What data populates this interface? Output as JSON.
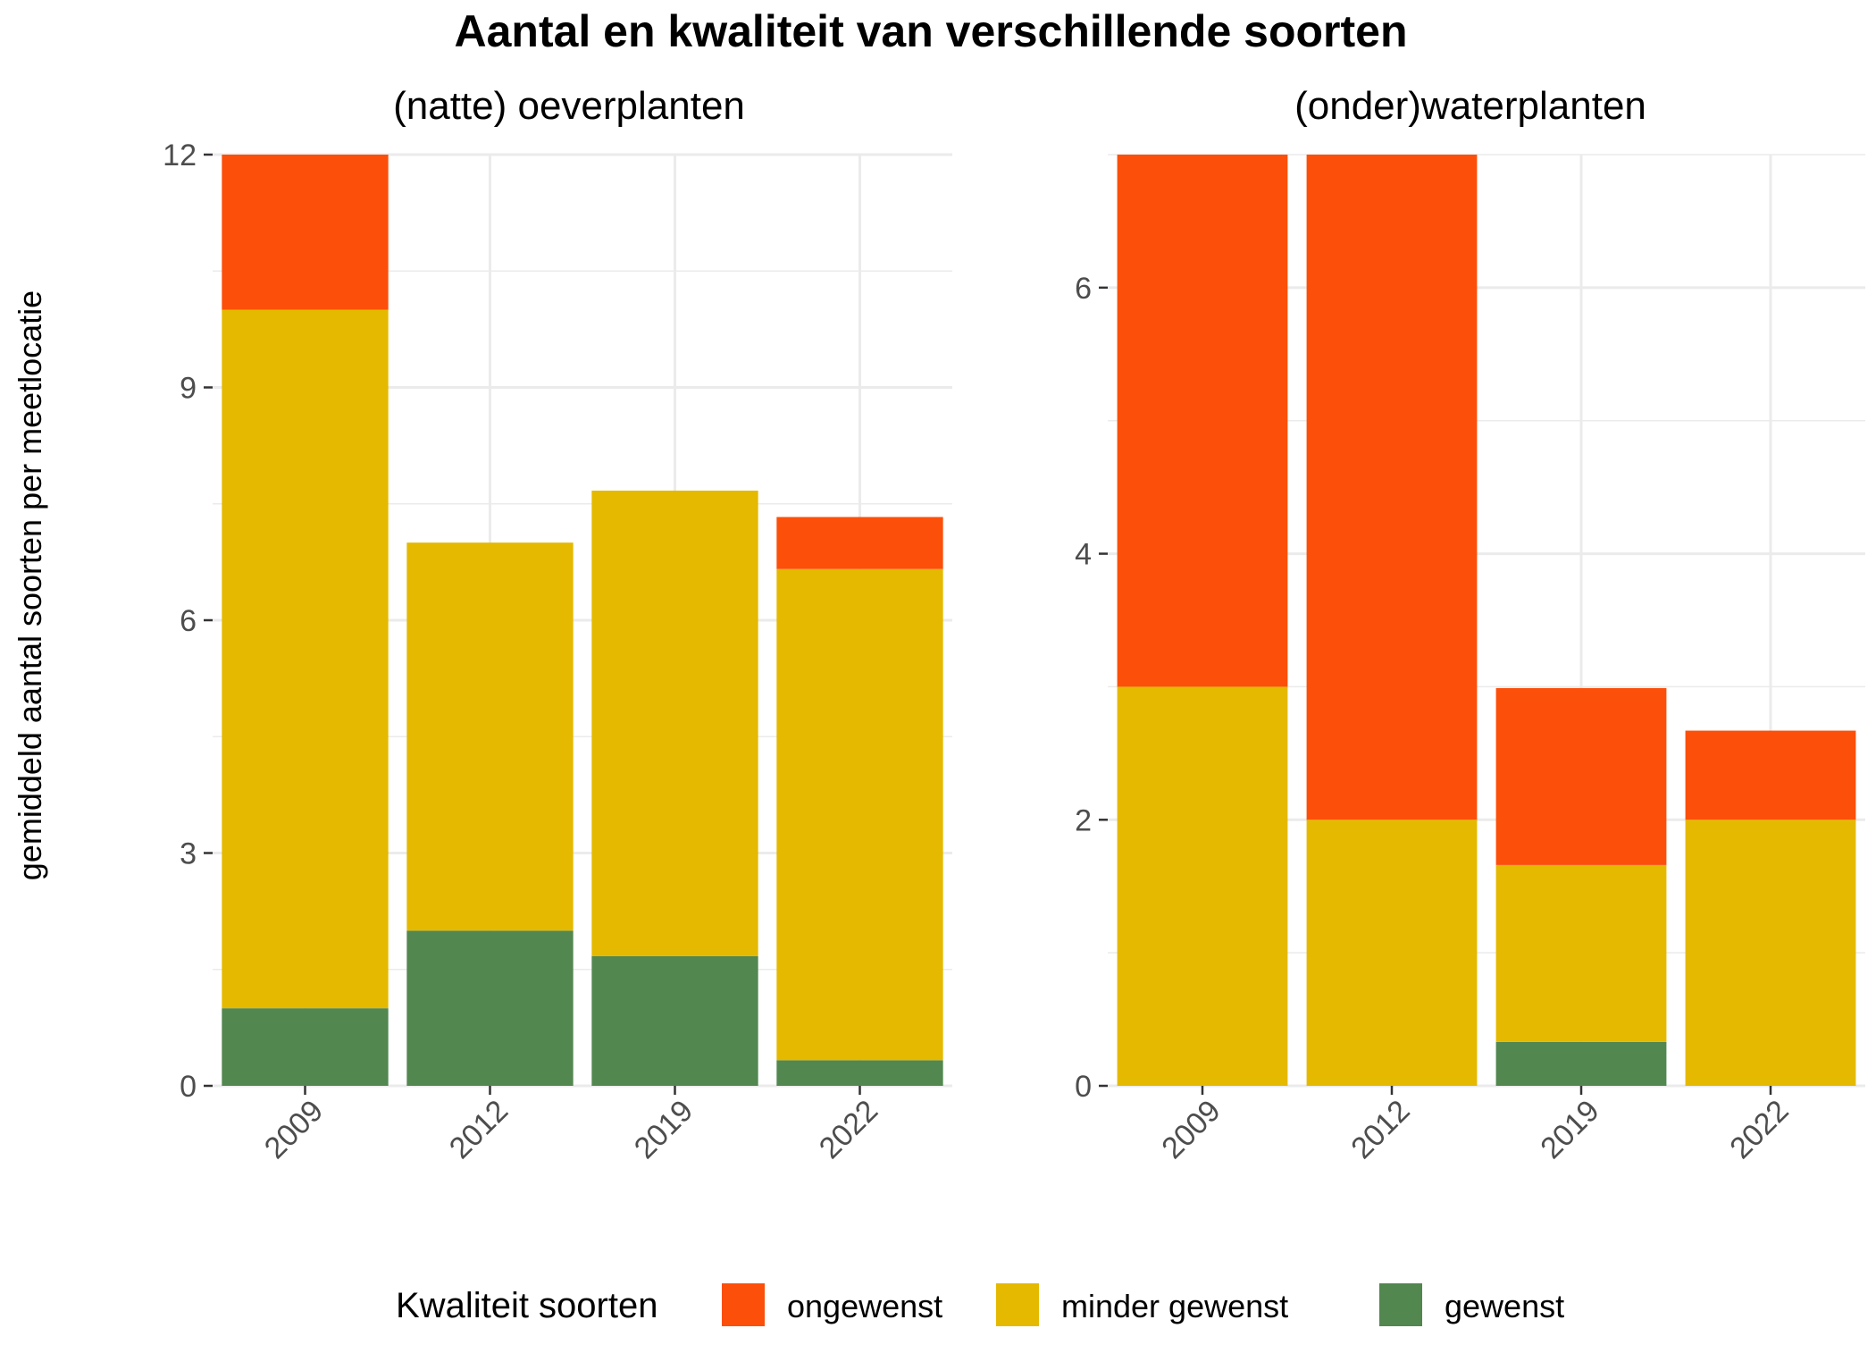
{
  "title": "Aantal en kwaliteit van verschillende soorten",
  "ylabel": "gemiddeld aantal soorten per meetlocatie",
  "legend": {
    "title": "Kwaliteit soorten",
    "position": "bottom",
    "entries": [
      {
        "name": "ongewenst",
        "color": "#FC4F0A"
      },
      {
        "name": "minder gewenst",
        "color": "#E5B900"
      },
      {
        "name": "gewenst",
        "color": "#52874F"
      }
    ]
  },
  "chart_data": [
    {
      "type": "bar",
      "stacked": true,
      "subtitle": "(natte) oeverplanten",
      "categories": [
        "2009",
        "2012",
        "2019",
        "2022"
      ],
      "series": [
        {
          "name": "gewenst",
          "color": "#52874F",
          "values": [
            1,
            2,
            1.67,
            0.33
          ]
        },
        {
          "name": "minder gewenst",
          "color": "#E5B900",
          "values": [
            9,
            5,
            6,
            6.33
          ]
        },
        {
          "name": "ongewenst",
          "color": "#FC4F0A",
          "values": [
            2,
            0,
            0,
            0.67
          ]
        }
      ],
      "yticks": [
        0,
        3,
        6,
        9,
        12
      ],
      "ylim": [
        0,
        12
      ],
      "grid": true
    },
    {
      "type": "bar",
      "stacked": true,
      "subtitle": "(onder)waterplanten",
      "categories": [
        "2009",
        "2012",
        "2019",
        "2022"
      ],
      "series": [
        {
          "name": "gewenst",
          "color": "#52874F",
          "values": [
            0,
            0,
            0.33,
            0
          ]
        },
        {
          "name": "minder gewenst",
          "color": "#E5B900",
          "values": [
            3,
            2,
            1.33,
            2
          ]
        },
        {
          "name": "ongewenst",
          "color": "#FC4F0A",
          "values": [
            4,
            5,
            1.33,
            0.67
          ]
        }
      ],
      "yticks": [
        0,
        2,
        4,
        6
      ],
      "ylim": [
        0,
        7
      ],
      "grid": true
    }
  ]
}
